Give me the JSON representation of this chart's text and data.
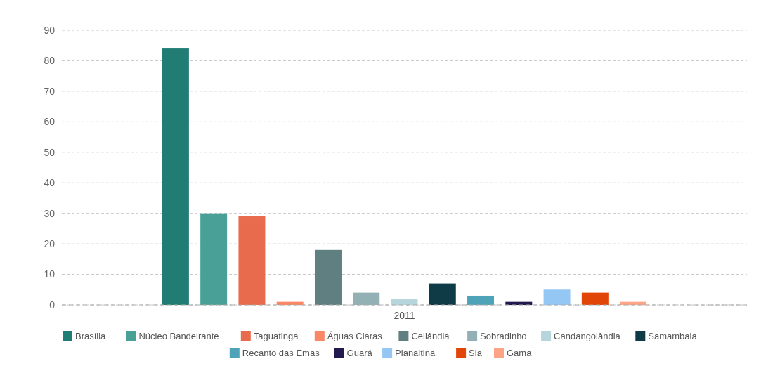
{
  "chart_data": {
    "type": "bar",
    "categories": [
      "2011"
    ],
    "ylim": [
      0,
      90
    ],
    "yticks": [
      0,
      10,
      20,
      30,
      40,
      50,
      60,
      70,
      80,
      90
    ],
    "grid": "y",
    "legend": "bottom",
    "series": [
      {
        "name": "Brasília",
        "color": "#217d74",
        "values": [
          84
        ]
      },
      {
        "name": "Núcleo Bandeirante",
        "color": "#48a096",
        "values": [
          30
        ]
      },
      {
        "name": "Taguatinga",
        "color": "#e86b4d",
        "values": [
          29
        ]
      },
      {
        "name": "Águas Claras",
        "color": "#fb8766",
        "values": [
          1
        ]
      },
      {
        "name": "Ceilândia",
        "color": "#607f81",
        "values": [
          18
        ]
      },
      {
        "name": "Sobradinho",
        "color": "#93b1b4",
        "values": [
          4
        ]
      },
      {
        "name": "Candangolândia",
        "color": "#b7d6dc",
        "values": [
          2
        ]
      },
      {
        "name": "Samambaia",
        "color": "#0f3b46",
        "values": [
          7
        ]
      },
      {
        "name": "Recanto das Emas",
        "color": "#4ea3b8",
        "values": [
          3
        ]
      },
      {
        "name": "Guará",
        "color": "#201a4f",
        "values": [
          1
        ]
      },
      {
        "name": "Planaltina",
        "color": "#95c7f4",
        "values": [
          5
        ]
      },
      {
        "name": "Sia",
        "color": "#e24508",
        "values": [
          4
        ]
      },
      {
        "name": "Gama",
        "color": "#fca485",
        "values": [
          1
        ]
      }
    ]
  }
}
